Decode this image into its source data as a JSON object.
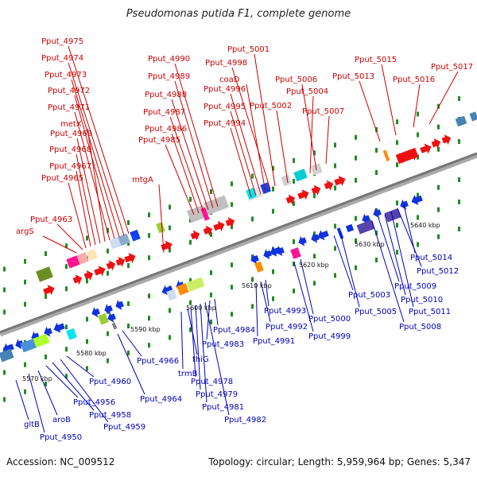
{
  "title": "Pseudomonas putida F1, complete genome",
  "accession": "Accession: NC_009512",
  "topology": "Topology: circular; Length: 5,959,964 bp; Genes: 5,347",
  "colors": {
    "forward_gene": "#ee1111",
    "reverse_gene": "#1133dd",
    "forward_label": "#cc0000",
    "reverse_label": "#0000bb",
    "backbone": "#888888",
    "tick": "#228b22"
  },
  "scale_labels": [
    "5570 kbp",
    "5580 kbp",
    "5590 kbp",
    "5600 kbp",
    "5610 kbp",
    "5620 kbp",
    "5630 kbp",
    "5640 kbp"
  ],
  "forward_genes": [
    "argS",
    "Pput_4963",
    "Pput_4965",
    "Pput_4967",
    "Pput_4968",
    "Pput_4969",
    "metX",
    "Pput_4971",
    "Pput_4972",
    "Pput_4973",
    "Pput_4974",
    "Pput_4975",
    "mtgA",
    "Pput_4985",
    "Pput_4986",
    "Pput_4987",
    "Pput_4988",
    "Pput_4989",
    "Pput_4990",
    "Pput_4994",
    "Pput_4995",
    "Pput_4996",
    "coaD",
    "Pput_4998",
    "Pput_5001",
    "Pput_5002",
    "Pput_5004",
    "Pput_5006",
    "Pput_5007",
    "Pput_5013",
    "Pput_5015",
    "Pput_5016",
    "Pput_5017"
  ],
  "reverse_genes": [
    "gltB",
    "Pput_4950",
    "aroB",
    "Pput_4956",
    "Pput_4958",
    "Pput_4959",
    "Pput_4960",
    "Pput_4964",
    "Pput_4966",
    "trmB",
    "thiG",
    "Pput_4978",
    "Pput_4979",
    "Pput_4981",
    "Pput_4982",
    "Pput_4983",
    "Pput_4984",
    "Pput_4991",
    "Pput_4992",
    "Pput_4993",
    "Pput_4999",
    "Pput_5000",
    "Pput_5003",
    "Pput_5005",
    "Pput_5008",
    "Pput_5009",
    "Pput_5010",
    "Pput_5011",
    "Pput_5012",
    "Pput_5014"
  ]
}
